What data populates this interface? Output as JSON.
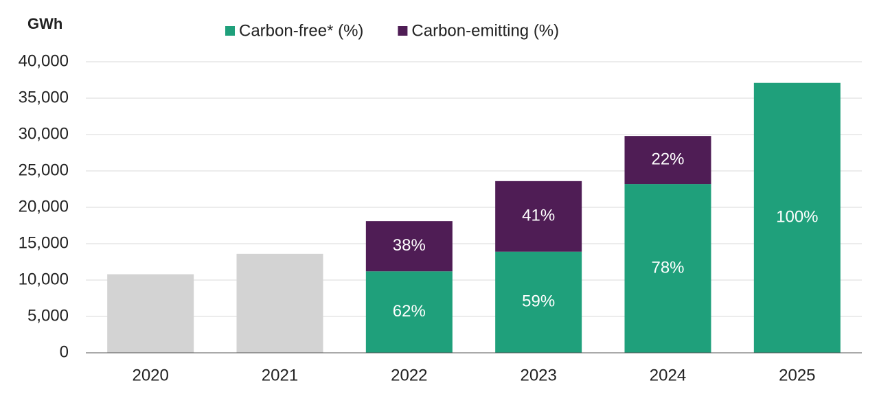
{
  "chart_data": {
    "type": "stacked_bar",
    "y_label": "GWh",
    "categories": [
      "2020",
      "2021",
      "2022",
      "2023",
      "2024",
      "2025"
    ],
    "series": [
      {
        "color": "#d3d3d3",
        "values": [
          10800,
          13600,
          null,
          null,
          null,
          null
        ]
      },
      {
        "name": "Carbon-free* (%)",
        "color": "#1fa07b",
        "values": [
          null,
          null,
          11200,
          13900,
          23200,
          37100
        ],
        "value_labels": [
          null,
          null,
          "62%",
          "59%",
          "78%",
          "100%"
        ]
      },
      {
        "name": "Carbon-emitting (%)",
        "color": "#4f1d55",
        "values": [
          null,
          null,
          6900,
          9700,
          6600,
          null
        ],
        "value_labels": [
          null,
          null,
          "38%",
          "41%",
          "22%",
          null
        ]
      }
    ],
    "ylim": [
      0,
      40000
    ],
    "yticks": [
      0,
      {
        "value": 5000,
        "label": "5,000"
      },
      {
        "value": 10000,
        "label": "10,000"
      },
      {
        "value": 15000,
        "label": "15,000"
      },
      {
        "value": 20000,
        "label": "20,000"
      },
      {
        "value": 25000,
        "label": "25,000"
      },
      {
        "value": 30000,
        "label": "30,000"
      },
      {
        "value": 35000,
        "label": "35,000"
      },
      {
        "value": 40000,
        "label": "40,000"
      }
    ],
    "grid": true
  }
}
